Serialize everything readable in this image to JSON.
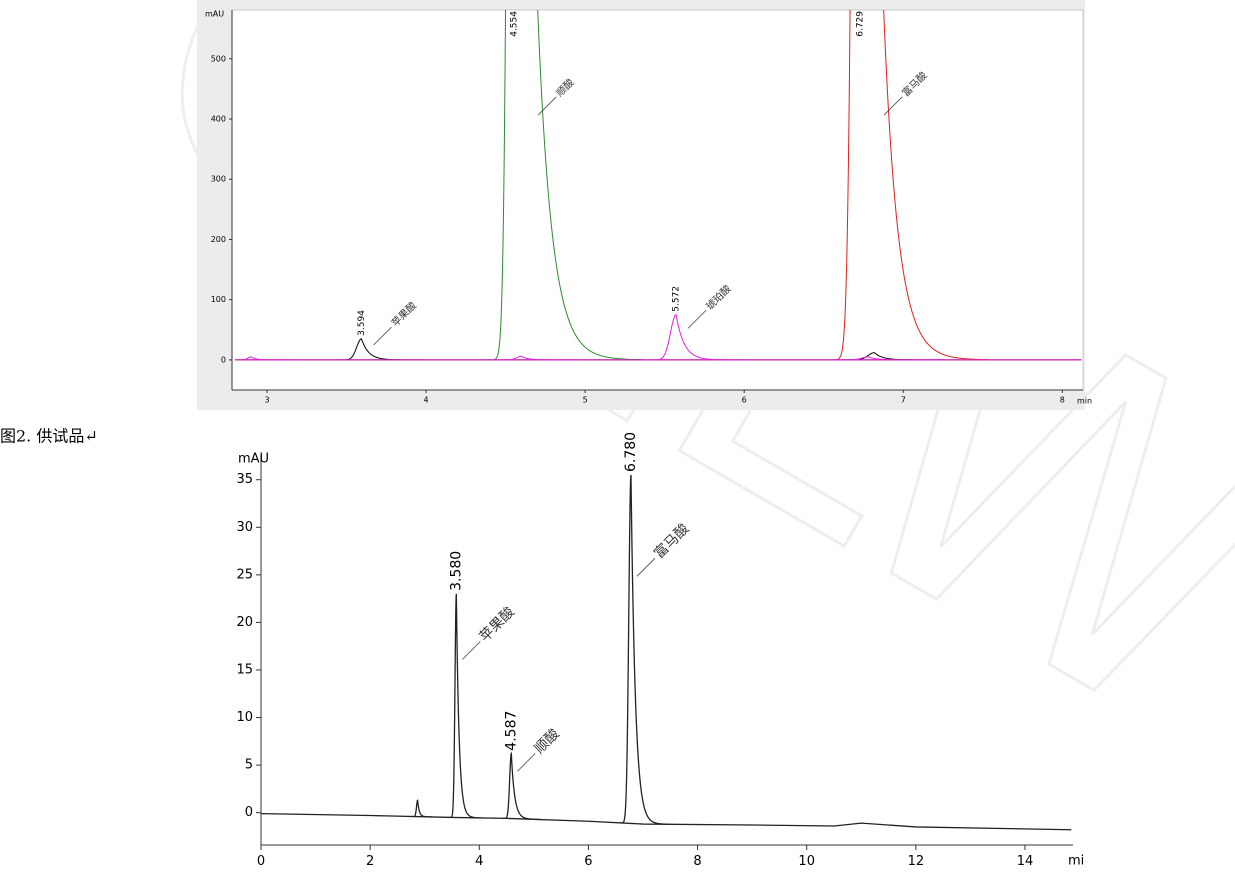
{
  "caption": "图2. 供试品↵",
  "watermark": "GZLW",
  "chart_data": [
    {
      "type": "line",
      "y_label": "mAU",
      "x_label": "min",
      "xlim": [
        2.78,
        8.13
      ],
      "ylim": [
        -50,
        581
      ],
      "xticks": [
        3,
        4,
        5,
        6,
        7,
        8
      ],
      "yticks": [
        0,
        100,
        200,
        300,
        400,
        500
      ],
      "series": [
        {
          "color": "#000000",
          "baseline": {
            "x": [
              2.8,
              8.12
            ],
            "values": [
              0,
              0
            ]
          },
          "peaks": [
            {
              "rt": 3.594,
              "height": 35,
              "width": [
                0.03,
                0.045
              ],
              "name": "苹果酸"
            },
            {
              "rt": 6.819,
              "height": 12,
              "width": [
                0.04,
                0.05
              ]
            }
          ]
        },
        {
          "color": "#2e8b2e",
          "baseline": {
            "x": [
              2.8,
              8.12
            ],
            "values": [
              0,
              0
            ]
          },
          "peaks": [
            {
              "rt": 4.554,
              "height": 3000,
              "width": [
                0.03,
                0.09
              ],
              "name": "顺酸"
            }
          ]
        },
        {
          "color": "#e0201c",
          "baseline": {
            "x": [
              2.8,
              8.12
            ],
            "values": [
              0,
              0
            ]
          },
          "peaks": [
            {
              "rt": 6.729,
              "height": 3000,
              "width": [
                0.035,
                0.09
              ],
              "name": "富马酸"
            }
          ]
        },
        {
          "color": "#e020e0",
          "baseline": {
            "x": [
              2.8,
              8.12
            ],
            "values": [
              0,
              0
            ]
          },
          "peaks": [
            {
              "rt": 2.9,
              "height": 5,
              "width": [
                0.02,
                0.03
              ]
            },
            {
              "rt": 4.6,
              "height": 6,
              "width": [
                0.03,
                0.04
              ]
            },
            {
              "rt": 5.572,
              "height": 75,
              "width": [
                0.035,
                0.05
              ],
              "name": "琥珀酸"
            },
            {
              "rt": 6.78,
              "height": 5,
              "width": [
                0.04,
                0.05
              ]
            }
          ]
        }
      ]
    },
    {
      "type": "line",
      "y_label": "mAU",
      "x_label": "mi",
      "xlim": [
        0,
        14.88
      ],
      "ylim": [
        -3.4,
        37.6
      ],
      "xticks": [
        0,
        2,
        4,
        6,
        8,
        10,
        12,
        14
      ],
      "yticks": [
        0,
        5,
        10,
        15,
        20,
        25,
        30,
        35
      ],
      "series": [
        {
          "color": "#222222",
          "baseline": {
            "x": [
              0,
              2,
              3.5,
              4.5,
              6,
              7,
              9,
              10.5,
              11,
              12,
              14.85
            ],
            "values": [
              -0.1,
              -0.3,
              -0.5,
              -0.6,
              -0.9,
              -1.2,
              -1.3,
              -1.4,
              -1.1,
              -1.5,
              -1.8
            ]
          },
          "peaks": [
            {
              "rt": 2.87,
              "height": 1.3,
              "width": [
                0.02,
                0.03
              ]
            },
            {
              "rt": 3.58,
              "rt_label": "3.580",
              "height": 23,
              "width": [
                0.025,
                0.05
              ],
              "name": "苹果酸"
            },
            {
              "rt": 4.587,
              "height": 6.2,
              "width": [
                0.03,
                0.06
              ],
              "name": "顺酸"
            },
            {
              "rt": 6.78,
              "rt_label": "6.780",
              "height": 35.5,
              "width": [
                0.04,
                0.08
              ],
              "name": "富马酸"
            }
          ]
        }
      ]
    }
  ]
}
